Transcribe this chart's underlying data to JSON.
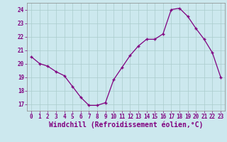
{
  "x": [
    0,
    1,
    2,
    3,
    4,
    5,
    6,
    7,
    8,
    9,
    10,
    11,
    12,
    13,
    14,
    15,
    16,
    17,
    18,
    19,
    20,
    21,
    22,
    23
  ],
  "y": [
    20.5,
    20.0,
    19.8,
    19.4,
    19.1,
    18.3,
    17.5,
    16.9,
    16.9,
    17.1,
    18.8,
    19.7,
    20.6,
    21.3,
    21.8,
    21.8,
    22.2,
    24.0,
    24.1,
    23.5,
    22.6,
    21.8,
    20.8,
    19.0
  ],
  "line_color": "#800080",
  "marker": "+",
  "marker_size": 3.5,
  "linewidth": 0.9,
  "bg_color": "#cce8ee",
  "grid_color": "#aacccc",
  "spine_color": "#888888",
  "tick_color": "#800080",
  "label_color": "#800080",
  "xlabel": "Windchill (Refroidissement éolien,°C)",
  "ylim": [
    16.5,
    24.5
  ],
  "xlim": [
    -0.5,
    23.5
  ],
  "yticks": [
    17,
    18,
    19,
    20,
    21,
    22,
    23,
    24
  ],
  "xticks": [
    0,
    1,
    2,
    3,
    4,
    5,
    6,
    7,
    8,
    9,
    10,
    11,
    12,
    13,
    14,
    15,
    16,
    17,
    18,
    19,
    20,
    21,
    22,
    23
  ],
  "tick_fontsize": 5.5,
  "xlabel_fontsize": 7.0,
  "markeredgewidth": 1.0
}
